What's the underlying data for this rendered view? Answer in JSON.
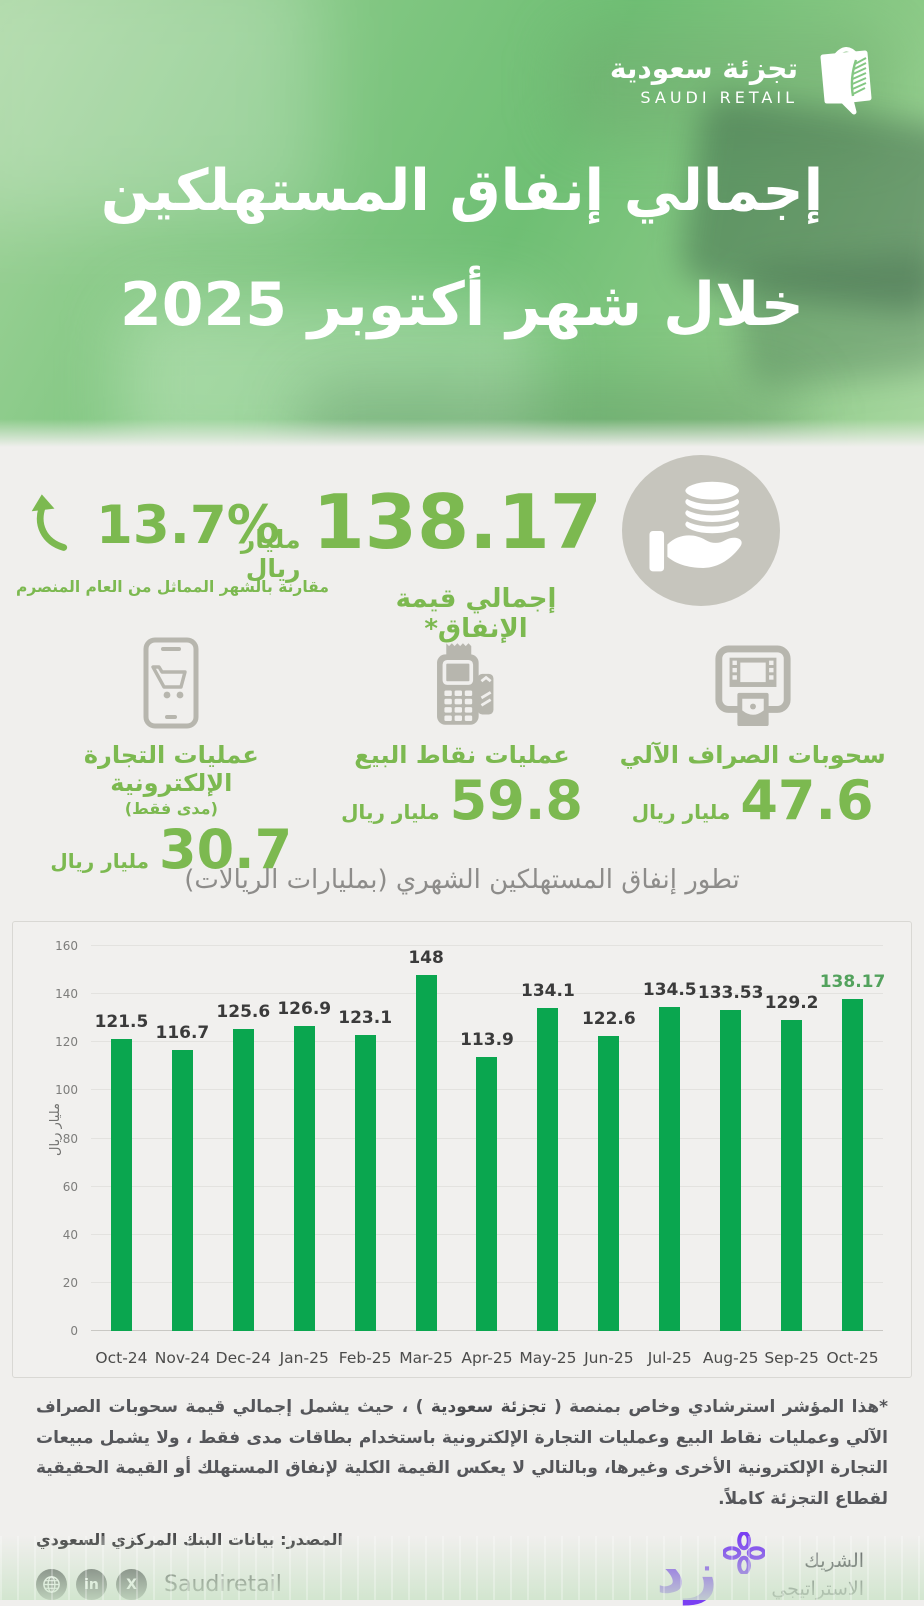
{
  "brand": {
    "name_ar": "تجزئة سعودية",
    "name_en": "SAUDI RETAIL",
    "logo_icon": "shopping-bag-palm-icon"
  },
  "header": {
    "title_line1": "إجمالي إنفاق المستهلكين",
    "title_line2": "خلال شهر أكتوبر 2025"
  },
  "summary": {
    "growth": {
      "value": "13.7%",
      "icon": "curved-up-arrow-icon",
      "caption": "مقارنة بالشهر المماثل من العام المنصرم"
    },
    "total": {
      "value": "138.17",
      "unit": "مليار ريال",
      "label": "إجمالي قيمة الإنفاق*",
      "icon": "hand-coins-icon"
    }
  },
  "categories": [
    {
      "key": "atm",
      "icon": "atm-icon",
      "label": "سحوبات الصراف الآلي",
      "value": "47.6",
      "unit": "مليار ريال"
    },
    {
      "key": "pos",
      "icon": "pos-terminal-icon",
      "label": "عمليات نقاط البيع",
      "value": "59.8",
      "unit": "مليار ريال"
    },
    {
      "key": "ecommerce",
      "icon": "mobile-cart-icon",
      "label": "عمليات التجارة الإلكترونية",
      "sublabel": "(مدى فقط)",
      "value": "30.7",
      "unit": "مليار ريال"
    }
  ],
  "chart_data": {
    "type": "bar",
    "title": "تطور إنفاق المستهلكين الشهري (بمليارات الريالات)",
    "ylabel": "مليار ريال",
    "categories": [
      "Oct-24",
      "Nov-24",
      "Dec-24",
      "Jan-25",
      "Feb-25",
      "Mar-25",
      "Apr-25",
      "May-25",
      "Jun-25",
      "Jul-25",
      "Aug-25",
      "Sep-25",
      "Oct-25"
    ],
    "values": [
      121.5,
      116.7,
      125.6,
      126.9,
      123.1,
      148,
      113.9,
      134.1,
      122.6,
      134.5,
      133.53,
      129.2,
      138.17
    ],
    "labels": [
      "121.5",
      "116.7",
      "125.6",
      "126.9",
      "123.1",
      "148",
      "113.9",
      "134.1",
      "122.6",
      "134.5",
      "133.53",
      "129.2",
      "138.17"
    ],
    "ylim": [
      0,
      160
    ],
    "ytick_step": 20,
    "yticks": [
      0,
      20,
      40,
      60,
      80,
      100,
      120,
      140,
      160
    ],
    "grid": true,
    "legend": "none",
    "bar_color": "#0aa64f",
    "label_color": "#3b3b3b",
    "highlight_last_label_color": "#53a25d"
  },
  "footnote": {
    "part1": "*هذا المؤشر استرشادي وخاص بمنصة ( ",
    "bold": "تجزئة سعودية",
    "part2": " ) ، حيث يشمل إجمالي قيمة سحوبات الصراف الآلي وعمليات نقاط البيع وعمليات التجارة الإلكترونية باستخدام بطاقات مدى فقط ، ولا يشمل مبيعات التجارة الإلكترونية الأخرى وغيرها، وبالتالي لا يعكس القيمة الكلية لإنفاق المستهلك أو القيمة الحقيقية لقطاع التجزئة كاملاً."
  },
  "source": "المصدر: بيانات البنك المركزي السعودي",
  "footer": {
    "social_handle": "Saudiretail",
    "social_icons": [
      "globe-icon",
      "linkedin-icon",
      "x-icon"
    ],
    "linkedin_glyph": "in",
    "x_glyph": "X",
    "partner": {
      "logo_text": "زد",
      "logo_icon": "zid-flower-icon",
      "label_line1": "الشريك",
      "label_line2": "الاستراتيجي"
    }
  },
  "colors": {
    "accent_green": "#7cb950",
    "bar_green": "#0aa64f",
    "icon_gray": "#b7b6ae",
    "ellipse_gray": "#c6c5bd",
    "partner_purple": "#7a3ff2",
    "text_dark": "#3b3b3b",
    "footnote_gray": "#55565a",
    "page_bg": "#f0efed"
  }
}
